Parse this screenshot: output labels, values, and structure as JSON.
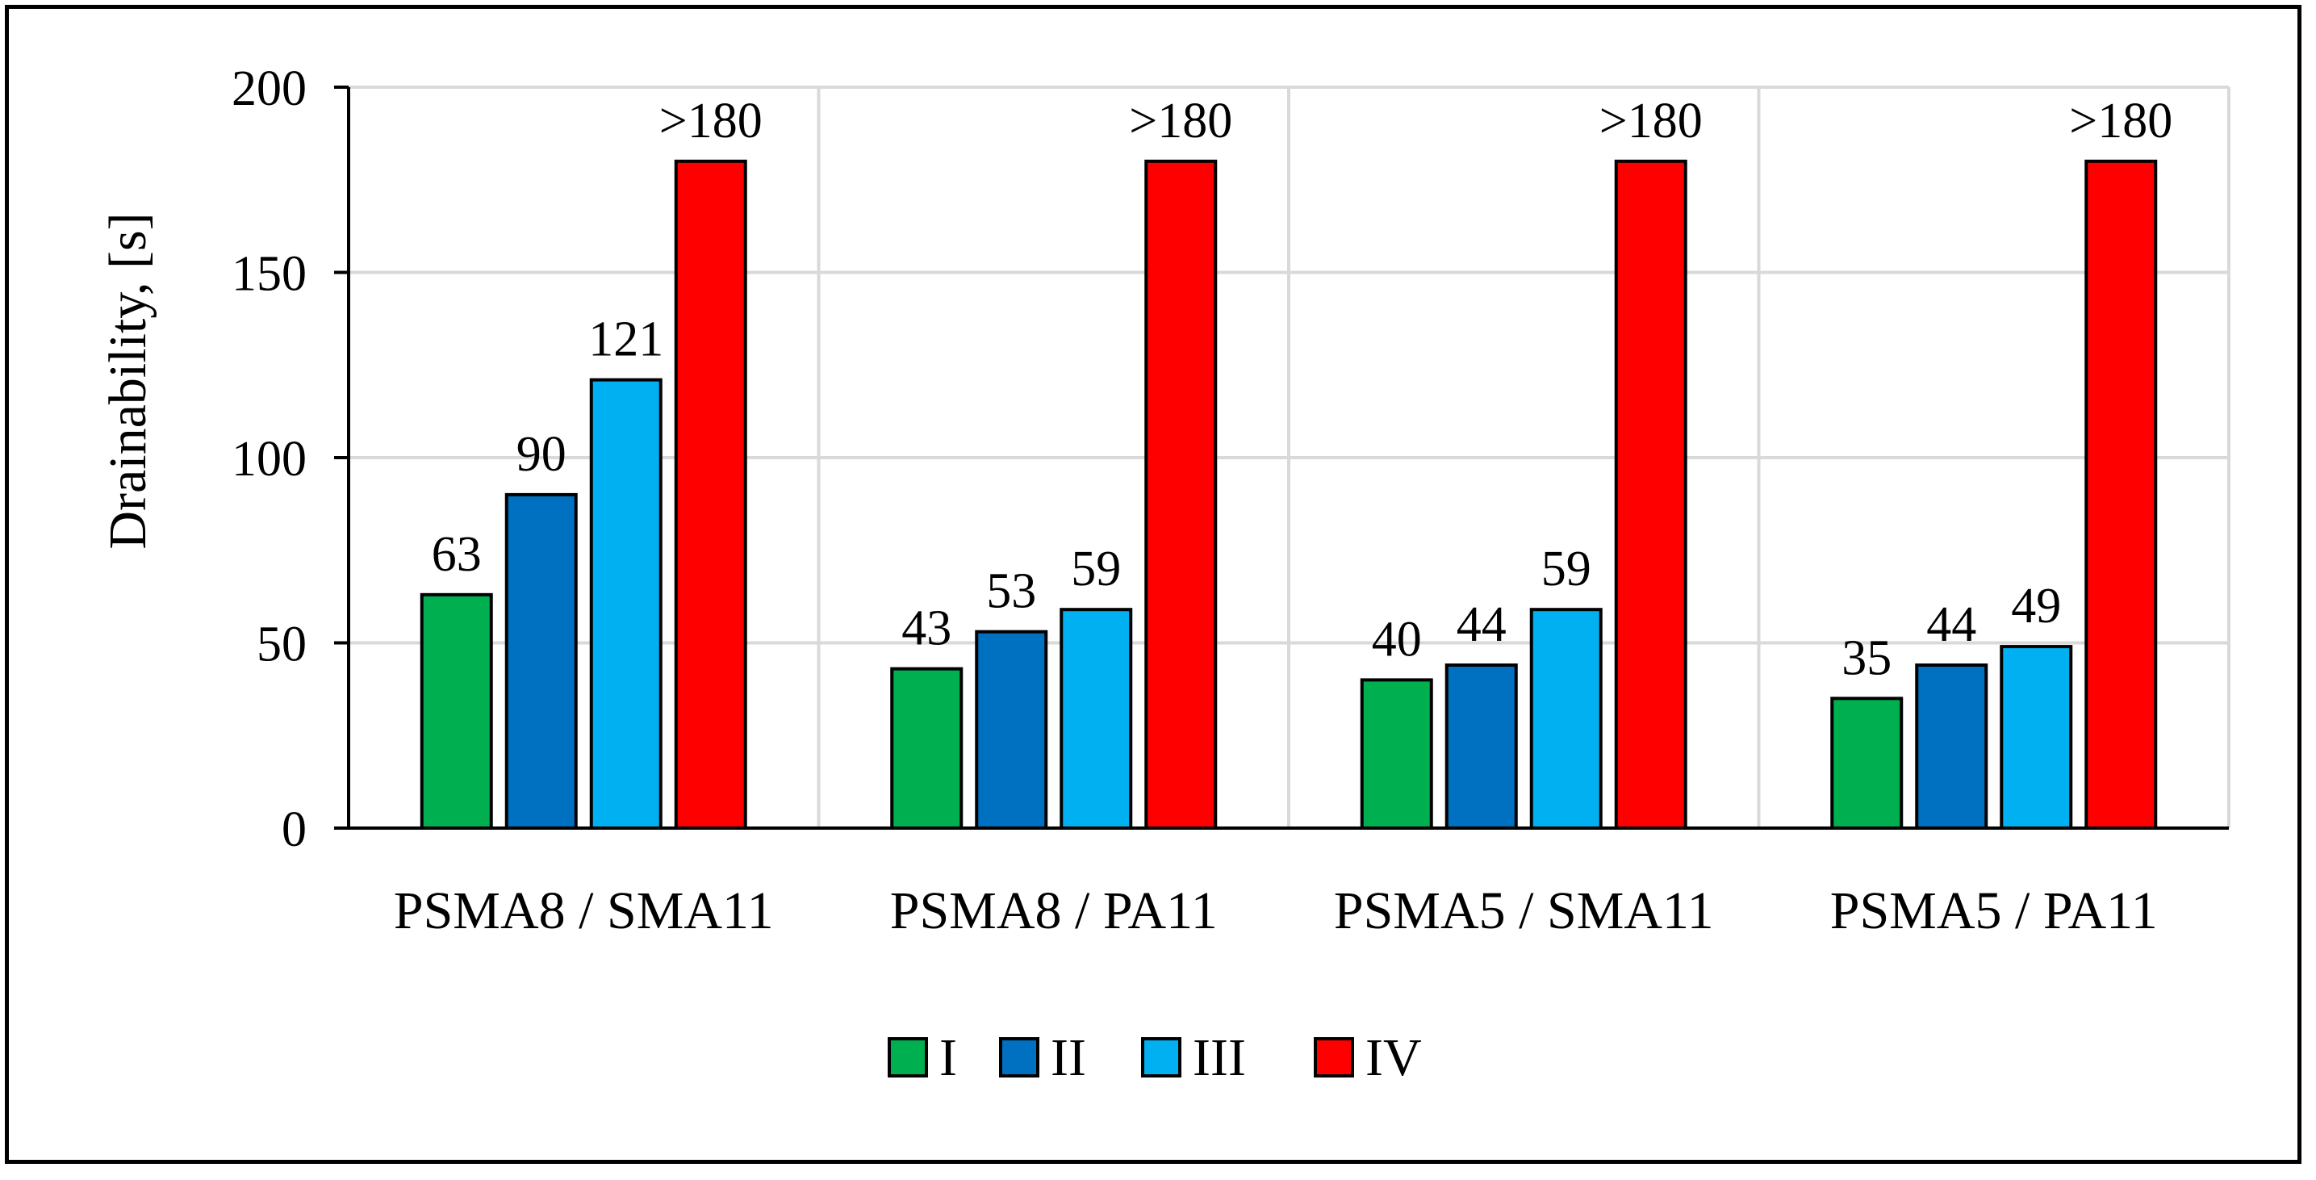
{
  "chart_data": {
    "type": "bar",
    "title": "",
    "xlabel": "",
    "ylabel": "Drainability, [s]",
    "ylim": [
      0,
      200
    ],
    "yticks": [
      0,
      50,
      100,
      150,
      200
    ],
    "grid": true,
    "legend_position": "bottom",
    "categories": [
      "PSMA8 / SMA11",
      "PSMA8 / PA11",
      "PSMA5 / SMA11",
      "PSMA5 / PA11"
    ],
    "series": [
      {
        "name": "I",
        "color": "#00B050",
        "values": [
          63,
          43,
          40,
          35
        ],
        "labels": [
          "63",
          "43",
          "40",
          "35"
        ]
      },
      {
        "name": "II",
        "color": "#0070C0",
        "values": [
          90,
          53,
          44,
          44
        ],
        "labels": [
          "90",
          "53",
          "44",
          "44"
        ]
      },
      {
        "name": "III",
        "color": "#00B0F0",
        "values": [
          121,
          59,
          59,
          49
        ],
        "labels": [
          "121",
          "59",
          "59",
          "49"
        ]
      },
      {
        "name": "IV",
        "color": "#FF0000",
        "values": [
          180,
          180,
          180,
          180
        ],
        "labels": [
          ">180",
          ">180",
          ">180",
          ">180"
        ]
      }
    ]
  }
}
